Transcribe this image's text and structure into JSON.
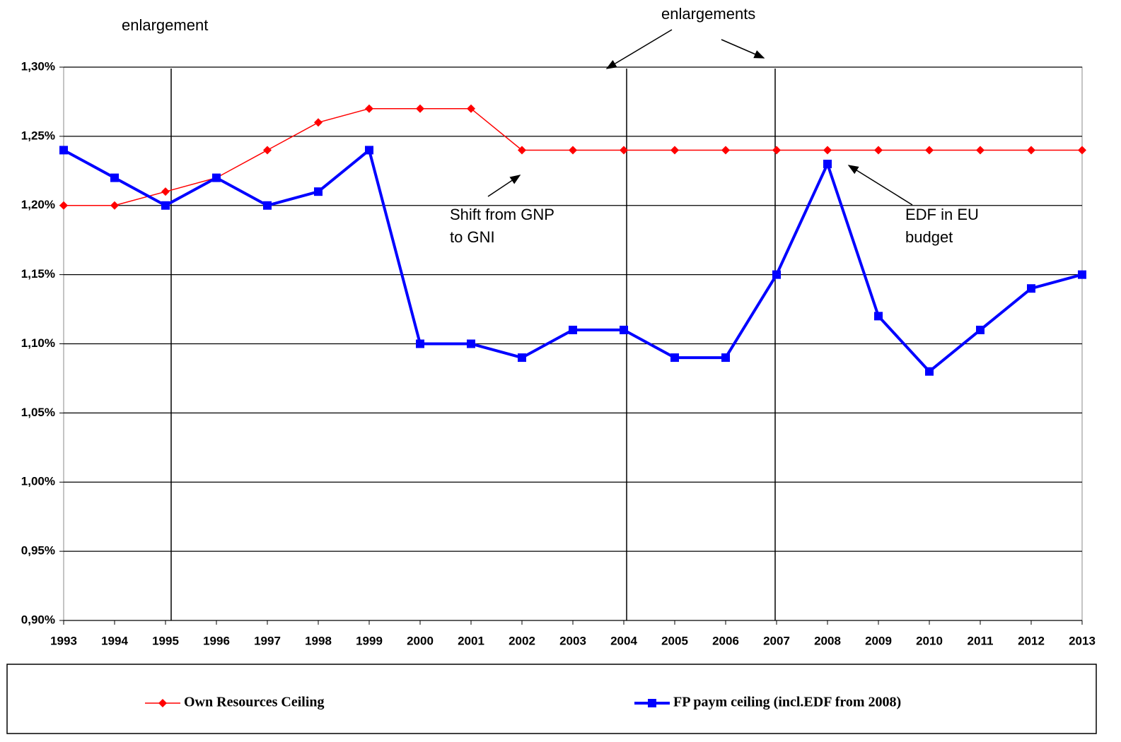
{
  "chart_data": {
    "type": "line",
    "categories": [
      "1993",
      "1994",
      "1995",
      "1996",
      "1997",
      "1998",
      "1999",
      "2000",
      "2001",
      "2002",
      "2003",
      "2004",
      "2005",
      "2006",
      "2007",
      "2008",
      "2009",
      "2010",
      "2011",
      "2012",
      "2013"
    ],
    "series": [
      {
        "name": "Own Resources Ceiling",
        "color": "#ff0000",
        "marker": "diamond",
        "values": [
          1.2,
          1.2,
          1.21,
          1.22,
          1.24,
          1.26,
          1.27,
          1.27,
          1.27,
          1.24,
          1.24,
          1.24,
          1.24,
          1.24,
          1.24,
          1.24,
          1.24,
          1.24,
          1.24,
          1.24,
          1.24
        ]
      },
      {
        "name": "FP paym ceiling (incl.EDF from 2008)",
        "color": "#0000ff",
        "marker": "square",
        "values": [
          1.24,
          1.22,
          1.2,
          1.22,
          1.2,
          1.21,
          1.24,
          1.1,
          1.1,
          1.09,
          1.11,
          1.11,
          1.09,
          1.09,
          1.15,
          1.23,
          1.12,
          1.08,
          1.11,
          1.14,
          1.15
        ]
      }
    ],
    "ylim": [
      0.9,
      1.3
    ],
    "yticks": [
      {
        "value": 0.9,
        "label": "0,90%"
      },
      {
        "value": 0.95,
        "label": "0,95%"
      },
      {
        "value": 1.0,
        "label": "1,00%"
      },
      {
        "value": 1.05,
        "label": "1,05%"
      },
      {
        "value": 1.1,
        "label": "1,10%"
      },
      {
        "value": 1.15,
        "label": "1,15%"
      },
      {
        "value": 1.2,
        "label": "1,20%"
      },
      {
        "value": 1.25,
        "label": "1,25%"
      },
      {
        "value": 1.3,
        "label": "1,30%"
      }
    ],
    "grid": true,
    "annotations": [
      "enlargement",
      "enlargements",
      "Shift from GNP to GNI",
      "EDF in EU budget"
    ]
  }
}
